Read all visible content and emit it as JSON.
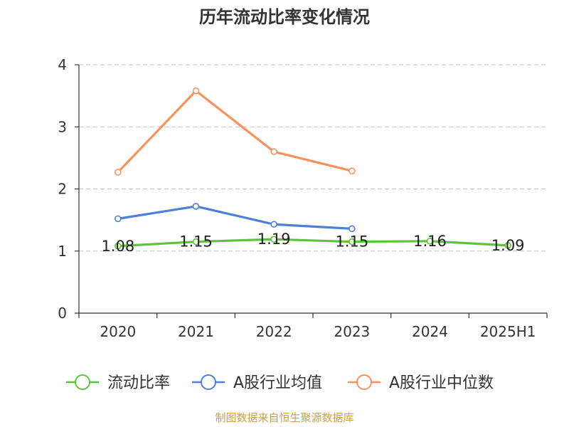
{
  "chart_data": {
    "type": "line",
    "title": "历年流动比率变化情况",
    "categories": [
      "2020",
      "2021",
      "2022",
      "2023",
      "2024",
      "2025H1"
    ],
    "ylim": [
      0,
      4
    ],
    "yticks": [
      "0",
      "1",
      "2",
      "3",
      "4"
    ],
    "grid": "horizontal-dashed",
    "legend_position": "bottom",
    "series": [
      {
        "name": "流动比率",
        "color": "#5cc43c",
        "values": [
          1.08,
          1.15,
          1.19,
          1.15,
          1.16,
          1.09
        ],
        "labels": [
          "1.08",
          "1.15",
          "1.19",
          "1.15",
          "1.16",
          "1.09"
        ]
      },
      {
        "name": "A股行业均值",
        "color": "#4d7fdb",
        "values": [
          1.52,
          1.72,
          1.43,
          1.36,
          null,
          null
        ]
      },
      {
        "name": "A股行业中位数",
        "color": "#f7925e",
        "values": [
          2.27,
          3.58,
          2.6,
          2.29,
          null,
          null
        ]
      }
    ]
  },
  "source": "制图数据来自恒生聚源数据库"
}
